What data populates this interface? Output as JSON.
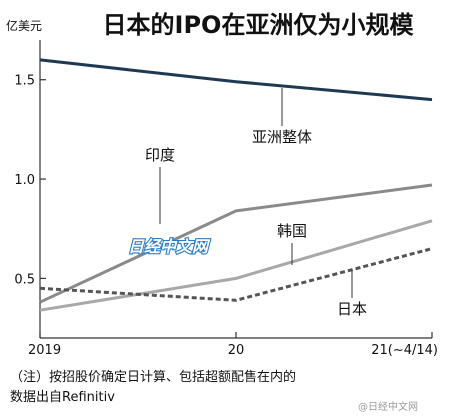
{
  "chart_data": {
    "type": "line",
    "title": "日本的IPO在亚洲仅为小规模",
    "ylabel": "亿美元",
    "ylim": [
      0.2,
      1.7
    ],
    "yticks": [
      0.5,
      1.0,
      1.5
    ],
    "ytick_labels": [
      "0.5",
      "1.0",
      "1.5"
    ],
    "x": [
      2019,
      2020,
      2021
    ],
    "xtick_labels": [
      "2019",
      "20",
      "21(~4/14)"
    ],
    "grid": false,
    "legend": "labels beside lines",
    "series": [
      {
        "name": "亚洲整体",
        "values": [
          1.6,
          1.49,
          1.4
        ],
        "color": "#1e3a52",
        "style": "solid"
      },
      {
        "name": "印度",
        "values": [
          0.38,
          0.84,
          0.97
        ],
        "color": "#8a8a8a",
        "style": "solid"
      },
      {
        "name": "韩国",
        "values": [
          0.34,
          0.5,
          0.79
        ],
        "color": "#a8a8a8",
        "style": "solid"
      },
      {
        "name": "日本",
        "values": [
          0.45,
          0.39,
          0.65
        ],
        "color": "#555555",
        "style": "dashed"
      }
    ],
    "note_lines": [
      "（注）按招股价确定日计算、包括超额配售在内的",
      "数据出自Refinitiv"
    ]
  },
  "watermark": {
    "center": "日经中文网",
    "bottom": "@日经中文网"
  }
}
